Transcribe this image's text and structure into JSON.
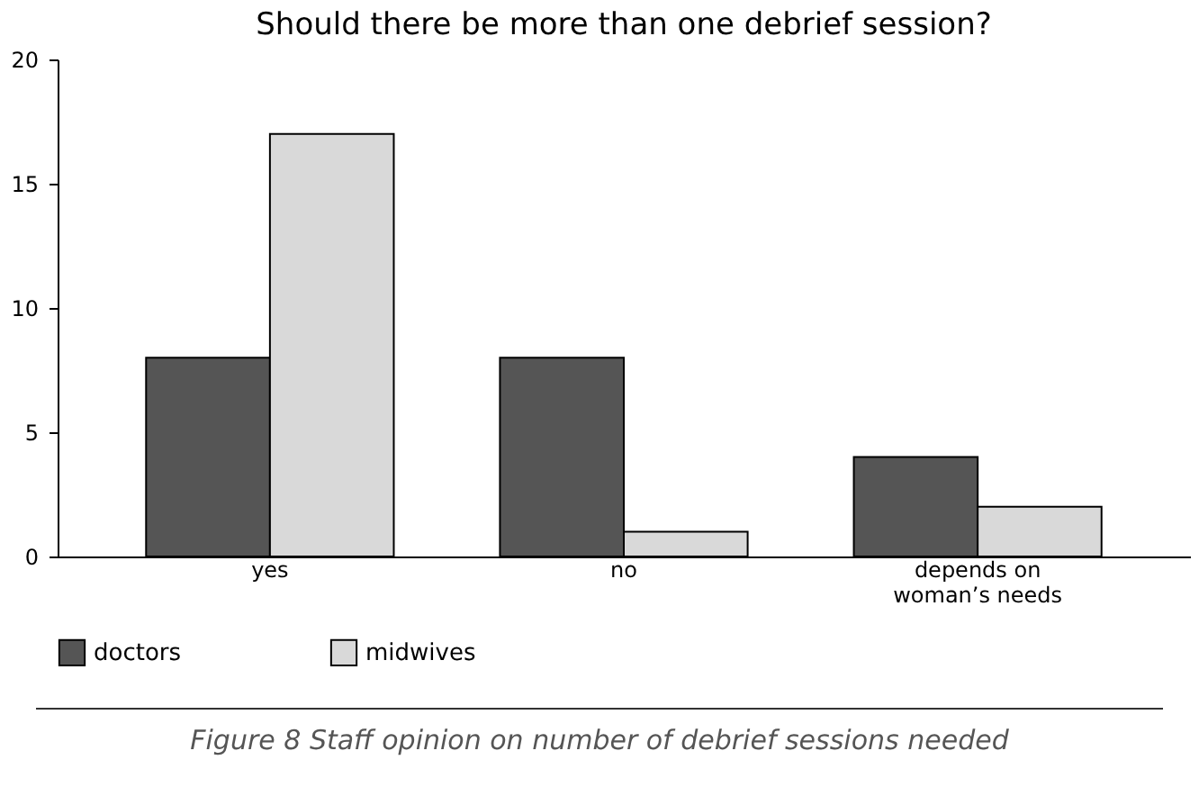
{
  "chart_data": {
    "type": "bar",
    "title": "Should there be more than one debrief session?",
    "categories": [
      "yes",
      "no",
      "depends on woman’s needs"
    ],
    "series": [
      {
        "name": "doctors",
        "color": "#555555",
        "values": [
          8,
          8,
          4
        ]
      },
      {
        "name": "midwives",
        "color": "#d9d9d9",
        "values": [
          17,
          1,
          2
        ]
      }
    ],
    "ylim": [
      0,
      20
    ],
    "yticks": [
      0,
      5,
      10,
      15,
      20
    ],
    "grid": false,
    "legend": "bottom",
    "annotations": [
      "Figure 8 Staff opinion on number of debrief sessions needed"
    ]
  }
}
